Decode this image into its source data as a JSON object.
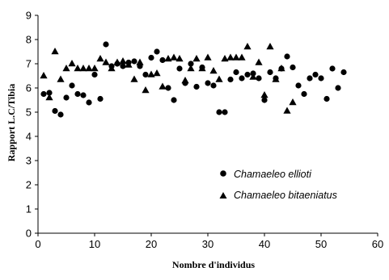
{
  "chart_data": {
    "type": "scatter",
    "xlabel": "Nombre d'individus",
    "ylabel": "Rapport L.C/Tibia",
    "xlim": [
      0,
      60
    ],
    "ylim": [
      0,
      9
    ],
    "x_ticks": [
      0,
      10,
      20,
      30,
      40,
      50,
      60
    ],
    "y_ticks": [
      0,
      1,
      2,
      3,
      4,
      5,
      6,
      7,
      8,
      9
    ],
    "grid": false,
    "legend_position": "bottom-right",
    "series": [
      {
        "name": "Chamaeleo ellioti",
        "marker": "circle",
        "color": "#000000",
        "points": [
          [
            1,
            5.75
          ],
          [
            2,
            5.8
          ],
          [
            3,
            5.05
          ],
          [
            4,
            4.9
          ],
          [
            5,
            5.6
          ],
          [
            6,
            6.1
          ],
          [
            7,
            5.75
          ],
          [
            8,
            5.7
          ],
          [
            9,
            5.4
          ],
          [
            10,
            6.55
          ],
          [
            11,
            5.55
          ],
          [
            12,
            7.8
          ],
          [
            13,
            6.9
          ],
          [
            14,
            7.0
          ],
          [
            15,
            6.9
          ],
          [
            16,
            7.05
          ],
          [
            17,
            7.1
          ],
          [
            18,
            6.9
          ],
          [
            19,
            6.55
          ],
          [
            20,
            7.25
          ],
          [
            21,
            7.5
          ],
          [
            22,
            7.15
          ],
          [
            23,
            6.0
          ],
          [
            24,
            5.5
          ],
          [
            25,
            6.8
          ],
          [
            26,
            6.2
          ],
          [
            27,
            7.0
          ],
          [
            28,
            6.05
          ],
          [
            29,
            6.85
          ],
          [
            30,
            6.2
          ],
          [
            31,
            6.1
          ],
          [
            32,
            5.0
          ],
          [
            33,
            5.0
          ],
          [
            34,
            6.35
          ],
          [
            35,
            6.65
          ],
          [
            36,
            6.4
          ],
          [
            37,
            6.55
          ],
          [
            38,
            6.6
          ],
          [
            39,
            6.4
          ],
          [
            40,
            5.5
          ],
          [
            41,
            6.65
          ],
          [
            42,
            6.4
          ],
          [
            43,
            6.8
          ],
          [
            44,
            7.3
          ],
          [
            45,
            6.85
          ],
          [
            46,
            6.1
          ],
          [
            47,
            5.75
          ],
          [
            48,
            6.4
          ],
          [
            49,
            6.55
          ],
          [
            50,
            6.4
          ],
          [
            51,
            5.55
          ],
          [
            52,
            6.8
          ],
          [
            53,
            6.0
          ],
          [
            54,
            6.65
          ]
        ]
      },
      {
        "name": "Chamaeleo bitaeniatus",
        "marker": "triangle",
        "color": "#000000",
        "points": [
          [
            1,
            6.5
          ],
          [
            2,
            5.6
          ],
          [
            3,
            7.5
          ],
          [
            4,
            6.35
          ],
          [
            5,
            6.8
          ],
          [
            6,
            7.0
          ],
          [
            7,
            6.8
          ],
          [
            8,
            6.8
          ],
          [
            9,
            6.8
          ],
          [
            10,
            6.8
          ],
          [
            11,
            7.2
          ],
          [
            12,
            7.05
          ],
          [
            13,
            6.8
          ],
          [
            14,
            7.05
          ],
          [
            15,
            7.1
          ],
          [
            16,
            6.95
          ],
          [
            17,
            6.35
          ],
          [
            18,
            7.05
          ],
          [
            19,
            5.9
          ],
          [
            20,
            6.55
          ],
          [
            21,
            6.6
          ],
          [
            22,
            6.05
          ],
          [
            23,
            7.2
          ],
          [
            24,
            7.25
          ],
          [
            25,
            7.2
          ],
          [
            26,
            6.3
          ],
          [
            27,
            6.8
          ],
          [
            28,
            7.2
          ],
          [
            29,
            6.8
          ],
          [
            30,
            7.25
          ],
          [
            31,
            6.7
          ],
          [
            32,
            6.35
          ],
          [
            33,
            7.2
          ],
          [
            34,
            7.25
          ],
          [
            35,
            7.25
          ],
          [
            36,
            7.25
          ],
          [
            37,
            7.7
          ],
          [
            38,
            6.45
          ],
          [
            39,
            7.05
          ],
          [
            40,
            5.7
          ],
          [
            41,
            7.7
          ],
          [
            42,
            6.35
          ],
          [
            43,
            6.8
          ],
          [
            44,
            5.05
          ],
          [
            45,
            5.4
          ]
        ]
      }
    ]
  }
}
